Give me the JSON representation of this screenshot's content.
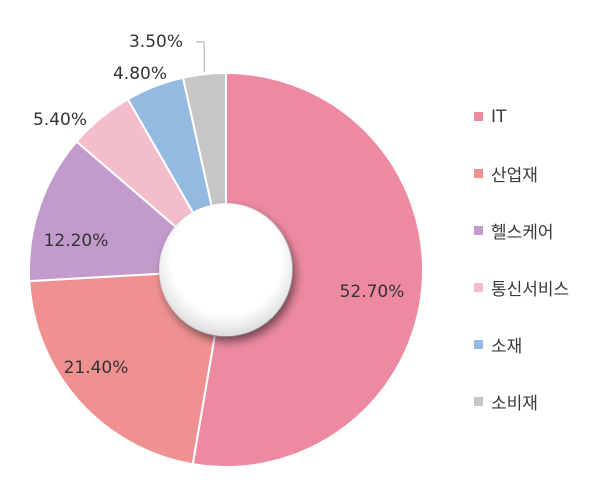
{
  "chart_data": {
    "type": "pie",
    "style": "donut",
    "categories": [
      "IT",
      "산업재",
      "헬스케어",
      "통신서비스",
      "소재",
      "소비재"
    ],
    "values": [
      52.7,
      21.4,
      12.2,
      5.4,
      4.8,
      3.5
    ],
    "data_labels": [
      "52.70%",
      "21.40%",
      "12.20%",
      "5.40%",
      "4.80%",
      "3.50%"
    ],
    "colors": [
      "#ED8AA2",
      "#EF9191",
      "#C39ACC",
      "#F4BDCB",
      "#93BBE2",
      "#C6C6C6"
    ],
    "legend_position": "right"
  }
}
